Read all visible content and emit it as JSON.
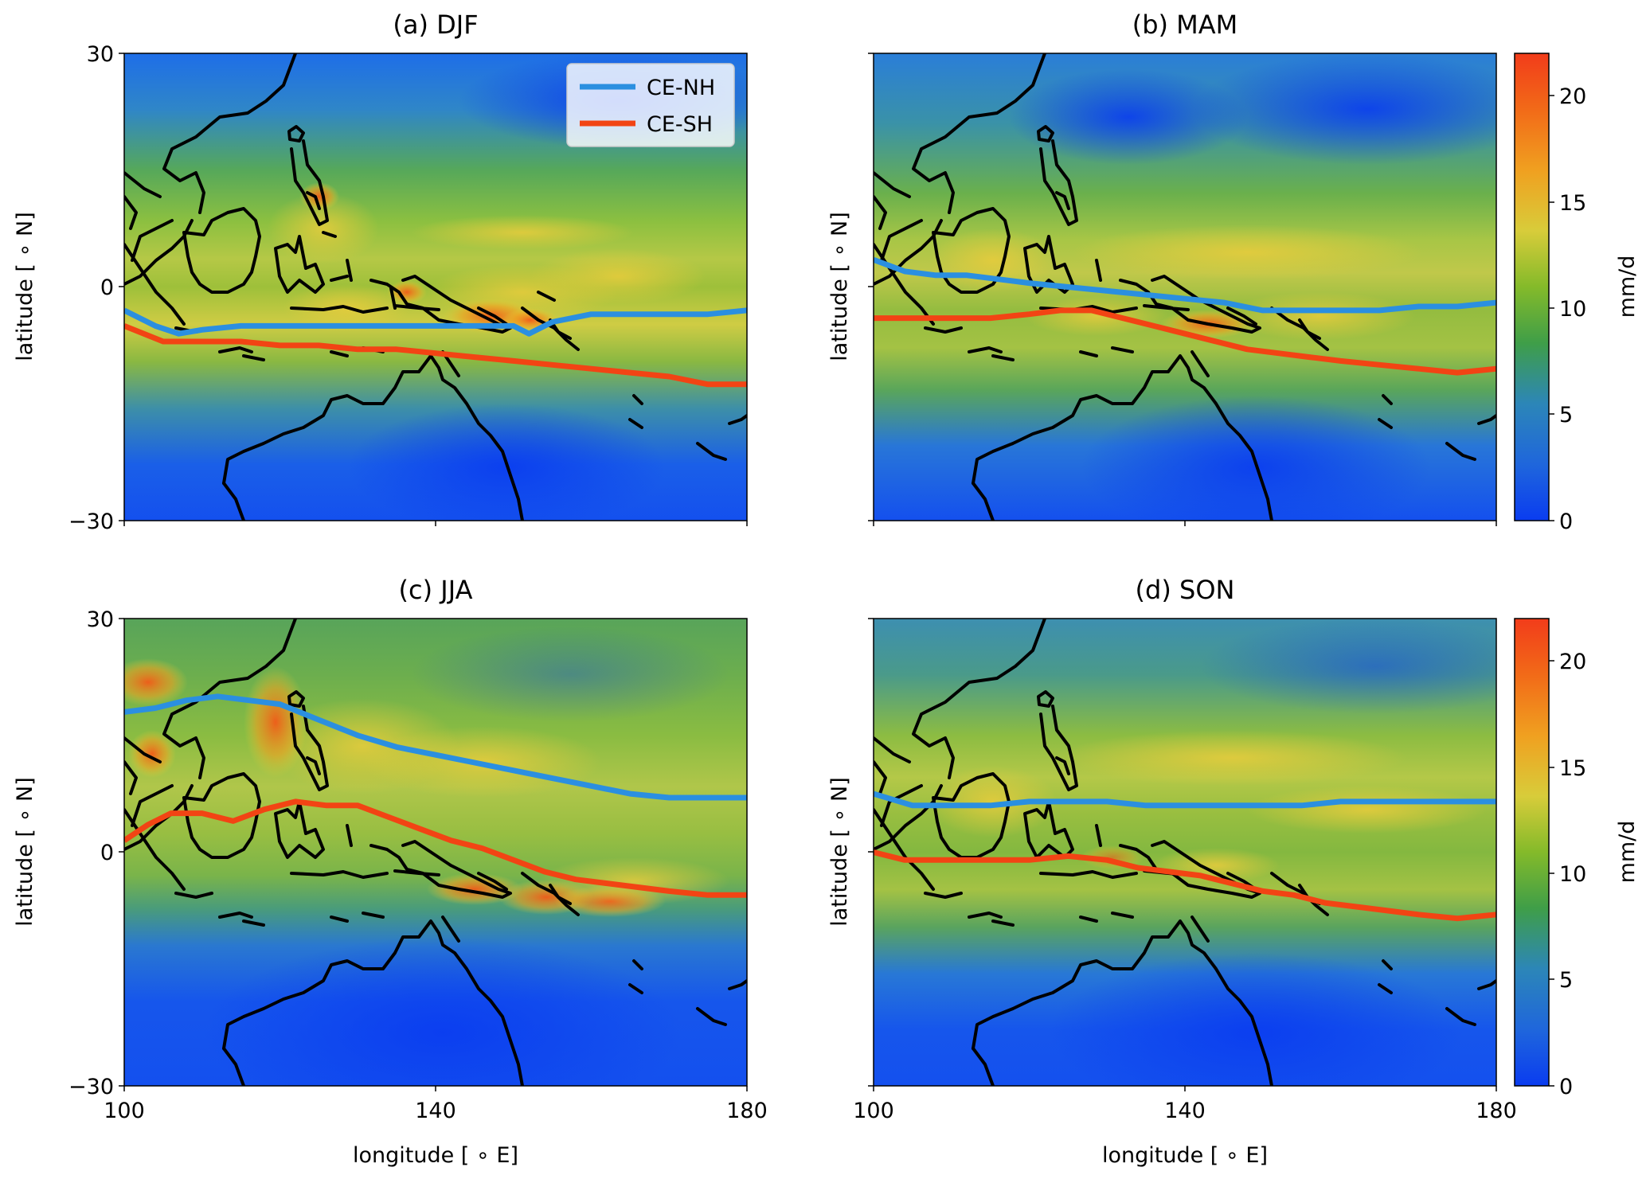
{
  "figure": {
    "panels": [
      {
        "id": "a",
        "title": "(a) DJF",
        "ce_nh": [
          [
            100,
            -3
          ],
          [
            104,
            -5
          ],
          [
            107,
            -6
          ],
          [
            110,
            -5.5
          ],
          [
            115,
            -5
          ],
          [
            120,
            -5
          ],
          [
            125,
            -5
          ],
          [
            130,
            -5
          ],
          [
            135,
            -5
          ],
          [
            140,
            -5
          ],
          [
            145,
            -5
          ],
          [
            150,
            -5
          ],
          [
            152,
            -6
          ],
          [
            155,
            -4.5
          ],
          [
            160,
            -3.5
          ],
          [
            165,
            -3.5
          ],
          [
            170,
            -3.5
          ],
          [
            175,
            -3.5
          ],
          [
            180,
            -3
          ]
        ],
        "ce_sh": [
          [
            100,
            -5
          ],
          [
            105,
            -7
          ],
          [
            110,
            -7
          ],
          [
            115,
            -7
          ],
          [
            120,
            -7.5
          ],
          [
            125,
            -7.5
          ],
          [
            130,
            -8
          ],
          [
            135,
            -8
          ],
          [
            140,
            -8.5
          ],
          [
            145,
            -9
          ],
          [
            150,
            -9.5
          ],
          [
            155,
            -10
          ],
          [
            160,
            -10.5
          ],
          [
            165,
            -11
          ],
          [
            170,
            -11.5
          ],
          [
            175,
            -12.5
          ],
          [
            180,
            -12.5
          ]
        ]
      },
      {
        "id": "b",
        "title": "(b) MAM",
        "ce_nh": [
          [
            100,
            3.5
          ],
          [
            104,
            2
          ],
          [
            108,
            1.5
          ],
          [
            112,
            1.5
          ],
          [
            116,
            1
          ],
          [
            120,
            0.5
          ],
          [
            125,
            0
          ],
          [
            130,
            -0.5
          ],
          [
            135,
            -1
          ],
          [
            140,
            -1.5
          ],
          [
            145,
            -2
          ],
          [
            150,
            -3
          ],
          [
            155,
            -3
          ],
          [
            160,
            -3
          ],
          [
            165,
            -3
          ],
          [
            170,
            -2.5
          ],
          [
            175,
            -2.5
          ],
          [
            180,
            -2
          ]
        ],
        "ce_sh": [
          [
            100,
            -4
          ],
          [
            105,
            -4
          ],
          [
            110,
            -4
          ],
          [
            115,
            -4
          ],
          [
            120,
            -3.5
          ],
          [
            124,
            -3
          ],
          [
            128,
            -3
          ],
          [
            132,
            -4
          ],
          [
            136,
            -5
          ],
          [
            140,
            -6
          ],
          [
            144,
            -7
          ],
          [
            148,
            -8
          ],
          [
            152,
            -8.5
          ],
          [
            156,
            -9
          ],
          [
            160,
            -9.5
          ],
          [
            165,
            -10
          ],
          [
            170,
            -10.5
          ],
          [
            175,
            -11
          ],
          [
            180,
            -10.5
          ]
        ]
      },
      {
        "id": "c",
        "title": "(c) JJA",
        "ce_nh": [
          [
            100,
            18
          ],
          [
            104,
            18.5
          ],
          [
            108,
            19.5
          ],
          [
            112,
            20
          ],
          [
            116,
            19.5
          ],
          [
            120,
            19
          ],
          [
            125,
            17
          ],
          [
            130,
            15
          ],
          [
            135,
            13.5
          ],
          [
            140,
            12.5
          ],
          [
            145,
            11.5
          ],
          [
            150,
            10.5
          ],
          [
            155,
            9.5
          ],
          [
            160,
            8.5
          ],
          [
            165,
            7.5
          ],
          [
            170,
            7
          ],
          [
            175,
            7
          ],
          [
            180,
            7
          ]
        ],
        "ce_sh": [
          [
            100,
            1.5
          ],
          [
            103,
            3.5
          ],
          [
            106,
            5
          ],
          [
            110,
            5
          ],
          [
            114,
            4
          ],
          [
            118,
            5.5
          ],
          [
            122,
            6.5
          ],
          [
            126,
            6
          ],
          [
            130,
            6
          ],
          [
            134,
            4.5
          ],
          [
            138,
            3
          ],
          [
            142,
            1.5
          ],
          [
            146,
            0.5
          ],
          [
            150,
            -1
          ],
          [
            154,
            -2.5
          ],
          [
            158,
            -3.5
          ],
          [
            162,
            -4
          ],
          [
            166,
            -4.5
          ],
          [
            170,
            -5
          ],
          [
            175,
            -5.5
          ],
          [
            180,
            -5.5
          ]
        ]
      },
      {
        "id": "d",
        "title": "(d) SON",
        "ce_nh": [
          [
            100,
            7.5
          ],
          [
            105,
            6
          ],
          [
            110,
            6
          ],
          [
            115,
            6
          ],
          [
            120,
            6.5
          ],
          [
            125,
            6.5
          ],
          [
            130,
            6.5
          ],
          [
            135,
            6
          ],
          [
            140,
            6
          ],
          [
            145,
            6
          ],
          [
            150,
            6
          ],
          [
            155,
            6
          ],
          [
            160,
            6.5
          ],
          [
            165,
            6.5
          ],
          [
            170,
            6.5
          ],
          [
            175,
            6.5
          ],
          [
            180,
            6.5
          ]
        ],
        "ce_sh": [
          [
            100,
            0
          ],
          [
            104,
            -1
          ],
          [
            108,
            -1
          ],
          [
            112,
            -1
          ],
          [
            116,
            -1
          ],
          [
            120,
            -1
          ],
          [
            125,
            -0.5
          ],
          [
            130,
            -1
          ],
          [
            134,
            -2
          ],
          [
            138,
            -2.5
          ],
          [
            142,
            -3
          ],
          [
            146,
            -4
          ],
          [
            150,
            -5
          ],
          [
            154,
            -5.5
          ],
          [
            158,
            -6.5
          ],
          [
            162,
            -7
          ],
          [
            166,
            -7.5
          ],
          [
            170,
            -8
          ],
          [
            175,
            -8.5
          ],
          [
            180,
            -8
          ]
        ]
      }
    ],
    "x_axis": {
      "label": "longitude [$^\\circ$E]",
      "label_text": "longitude [ ∘ E]",
      "ticks": [
        "100",
        "140",
        "180"
      ],
      "range": [
        100,
        180
      ]
    },
    "y_axis": {
      "label_text": "latitude [ ∘ N]",
      "ticks": [
        "30",
        "0",
        "−30"
      ],
      "range": [
        -30,
        30
      ]
    },
    "colorbar": {
      "label": "mm/d",
      "ticks": [
        "0",
        "5",
        "10",
        "15",
        "20"
      ],
      "range": [
        0,
        22
      ],
      "colors": [
        "#0a3cf0",
        "#2c80cc",
        "#3b9a4a",
        "#7bb82e",
        "#e6d03a",
        "#f08a1e",
        "#f2401a"
      ]
    },
    "legend": {
      "placement": "upper-right of panel (a)",
      "items": [
        {
          "label": "CE-NH",
          "color": "#2b8fe0"
        },
        {
          "label": "CE-SH",
          "color": "#f24414"
        }
      ]
    }
  },
  "chart_data": [
    {
      "type": "map",
      "title": "(a) DJF",
      "xlabel": "longitude [∘E]",
      "ylabel": "latitude [∘N]",
      "xlim": [
        100,
        180
      ],
      "ylim": [
        -30,
        30
      ],
      "series": [
        {
          "name": "CE-NH",
          "x": [
            100,
            104,
            107,
            110,
            115,
            120,
            125,
            130,
            135,
            140,
            145,
            150,
            152,
            155,
            160,
            165,
            170,
            175,
            180
          ],
          "y": [
            -3,
            -5,
            -6,
            -5.5,
            -5,
            -5,
            -5,
            -5,
            -5,
            -5,
            -5,
            -5,
            -6,
            -4.5,
            -3.5,
            -3.5,
            -3.5,
            -3.5,
            -3
          ]
        },
        {
          "name": "CE-SH",
          "x": [
            100,
            105,
            110,
            115,
            120,
            125,
            130,
            135,
            140,
            145,
            150,
            155,
            160,
            165,
            170,
            175,
            180
          ],
          "y": [
            -5,
            -7,
            -7,
            -7,
            -7.5,
            -7.5,
            -8,
            -8,
            -8.5,
            -9,
            -9.5,
            -10,
            -10.5,
            -11,
            -11.5,
            -12.5,
            -12.5
          ]
        }
      ]
    },
    {
      "type": "map",
      "title": "(b) MAM",
      "xlim": [
        100,
        180
      ],
      "ylim": [
        -30,
        30
      ],
      "colorbar_label": "mm/d",
      "colorbar_range": [
        0,
        22
      ]
    },
    {
      "type": "map",
      "title": "(c) JJA",
      "xlabel": "longitude [∘E]",
      "ylabel": "latitude [∘N]",
      "xlim": [
        100,
        180
      ],
      "ylim": [
        -30,
        30
      ]
    },
    {
      "type": "map",
      "title": "(d) SON",
      "xlabel": "longitude [∘E]",
      "xlim": [
        100,
        180
      ],
      "ylim": [
        -30,
        30
      ],
      "colorbar_label": "mm/d",
      "colorbar_range": [
        0,
        22
      ]
    }
  ]
}
